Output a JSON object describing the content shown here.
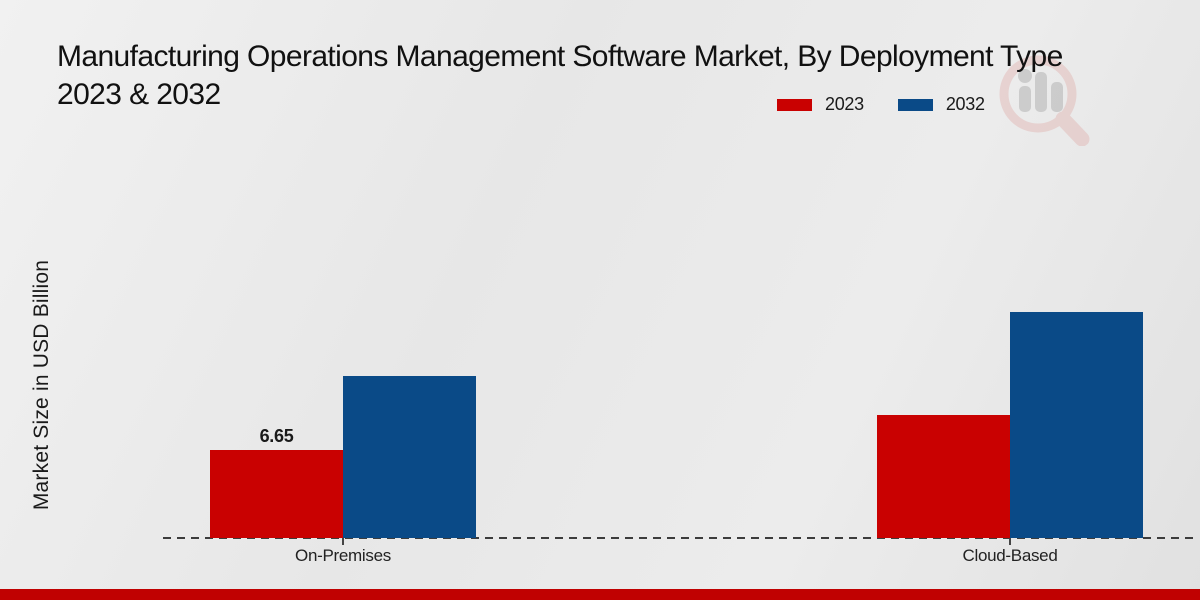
{
  "header": {
    "title_line1": "Manufacturing Operations Management Software Market, By Deployment Type",
    "title_line2": "2023 & 2032"
  },
  "legend": {
    "items": [
      {
        "label": "2023",
        "color": "#c90101"
      },
      {
        "label": "2032",
        "color": "#0a4a87"
      }
    ]
  },
  "y_axis": {
    "label": "Market Size in USD Billion"
  },
  "footer": {
    "bar_color": "#c00101"
  },
  "watermark": {
    "icon": "magnifier-bar-chart-logo"
  },
  "chart_data": {
    "type": "bar",
    "title": "Manufacturing Operations Management Software Market, By Deployment Type 2023 & 2032",
    "categories": [
      "On-Premises",
      "Cloud-Based"
    ],
    "series": [
      {
        "name": "2023",
        "color": "#c90101",
        "values": [
          6.65,
          9.3
        ],
        "data_labels": [
          "6.65",
          ""
        ]
      },
      {
        "name": "2032",
        "color": "#0a4a87",
        "values": [
          12.25,
          17.1
        ],
        "data_labels": [
          "",
          ""
        ]
      }
    ],
    "xlabel": "",
    "ylabel": "Market Size in USD Billion",
    "ylim": [
      0,
      28.6
    ],
    "grid": false,
    "legend_position": "top-right",
    "baseline_style": "dashed",
    "bar_value_unit": "USD Billion"
  }
}
